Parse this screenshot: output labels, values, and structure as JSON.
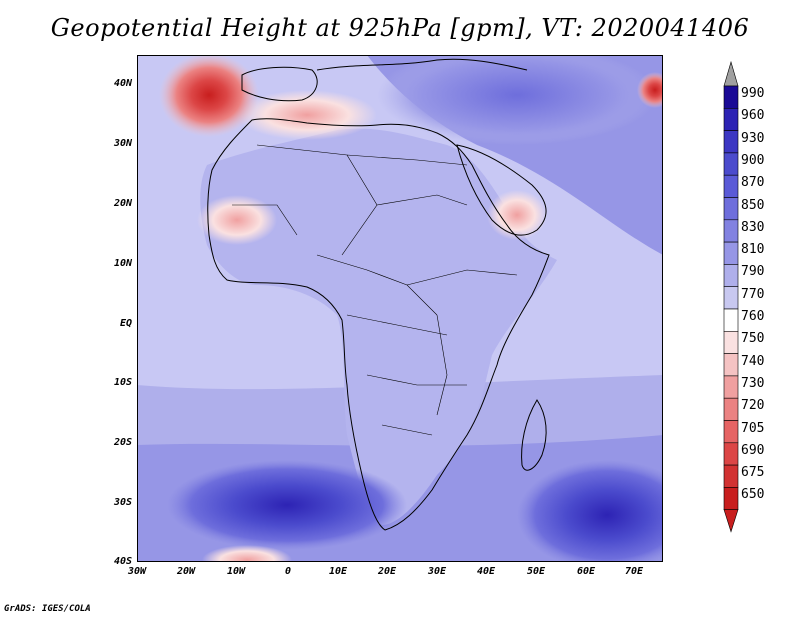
{
  "title": "Geopotential Height at 925hPa [gpm], VT: 2020041406",
  "credit": "GrADS: IGES/COLA",
  "axes": {
    "lat_labels": [
      "40N",
      "30N",
      "20N",
      "10N",
      "EQ",
      "10S",
      "20S",
      "30S",
      "40S"
    ],
    "lon_labels": [
      "30W",
      "20W",
      "10W",
      "0",
      "10E",
      "20E",
      "30E",
      "40E",
      "50E",
      "60E",
      "70E"
    ]
  },
  "colorbar": {
    "levels": [
      "990",
      "960",
      "930",
      "900",
      "870",
      "850",
      "830",
      "810",
      "790",
      "770",
      "760",
      "750",
      "740",
      "730",
      "720",
      "705",
      "690",
      "675",
      "650"
    ],
    "colors": [
      "#1a0a96",
      "#2d23b4",
      "#3c37c3",
      "#4b4bcd",
      "#5a5ad7",
      "#6e6edc",
      "#8282e1",
      "#9696e6",
      "#afafeb",
      "#c8c8f0",
      "#ffffff",
      "#fae1e1",
      "#f5c3c3",
      "#f0a0a0",
      "#eb8282",
      "#e66464",
      "#dc4646",
      "#d23232",
      "#c81e1e"
    ],
    "over_color": "#a0a0a0",
    "under_color": "#c81e1e"
  },
  "map": {
    "ocean_color": "#c8c8f4",
    "land_color": "#afafeb",
    "high_color": "#3c37c3",
    "low_color": "#dc4646"
  }
}
